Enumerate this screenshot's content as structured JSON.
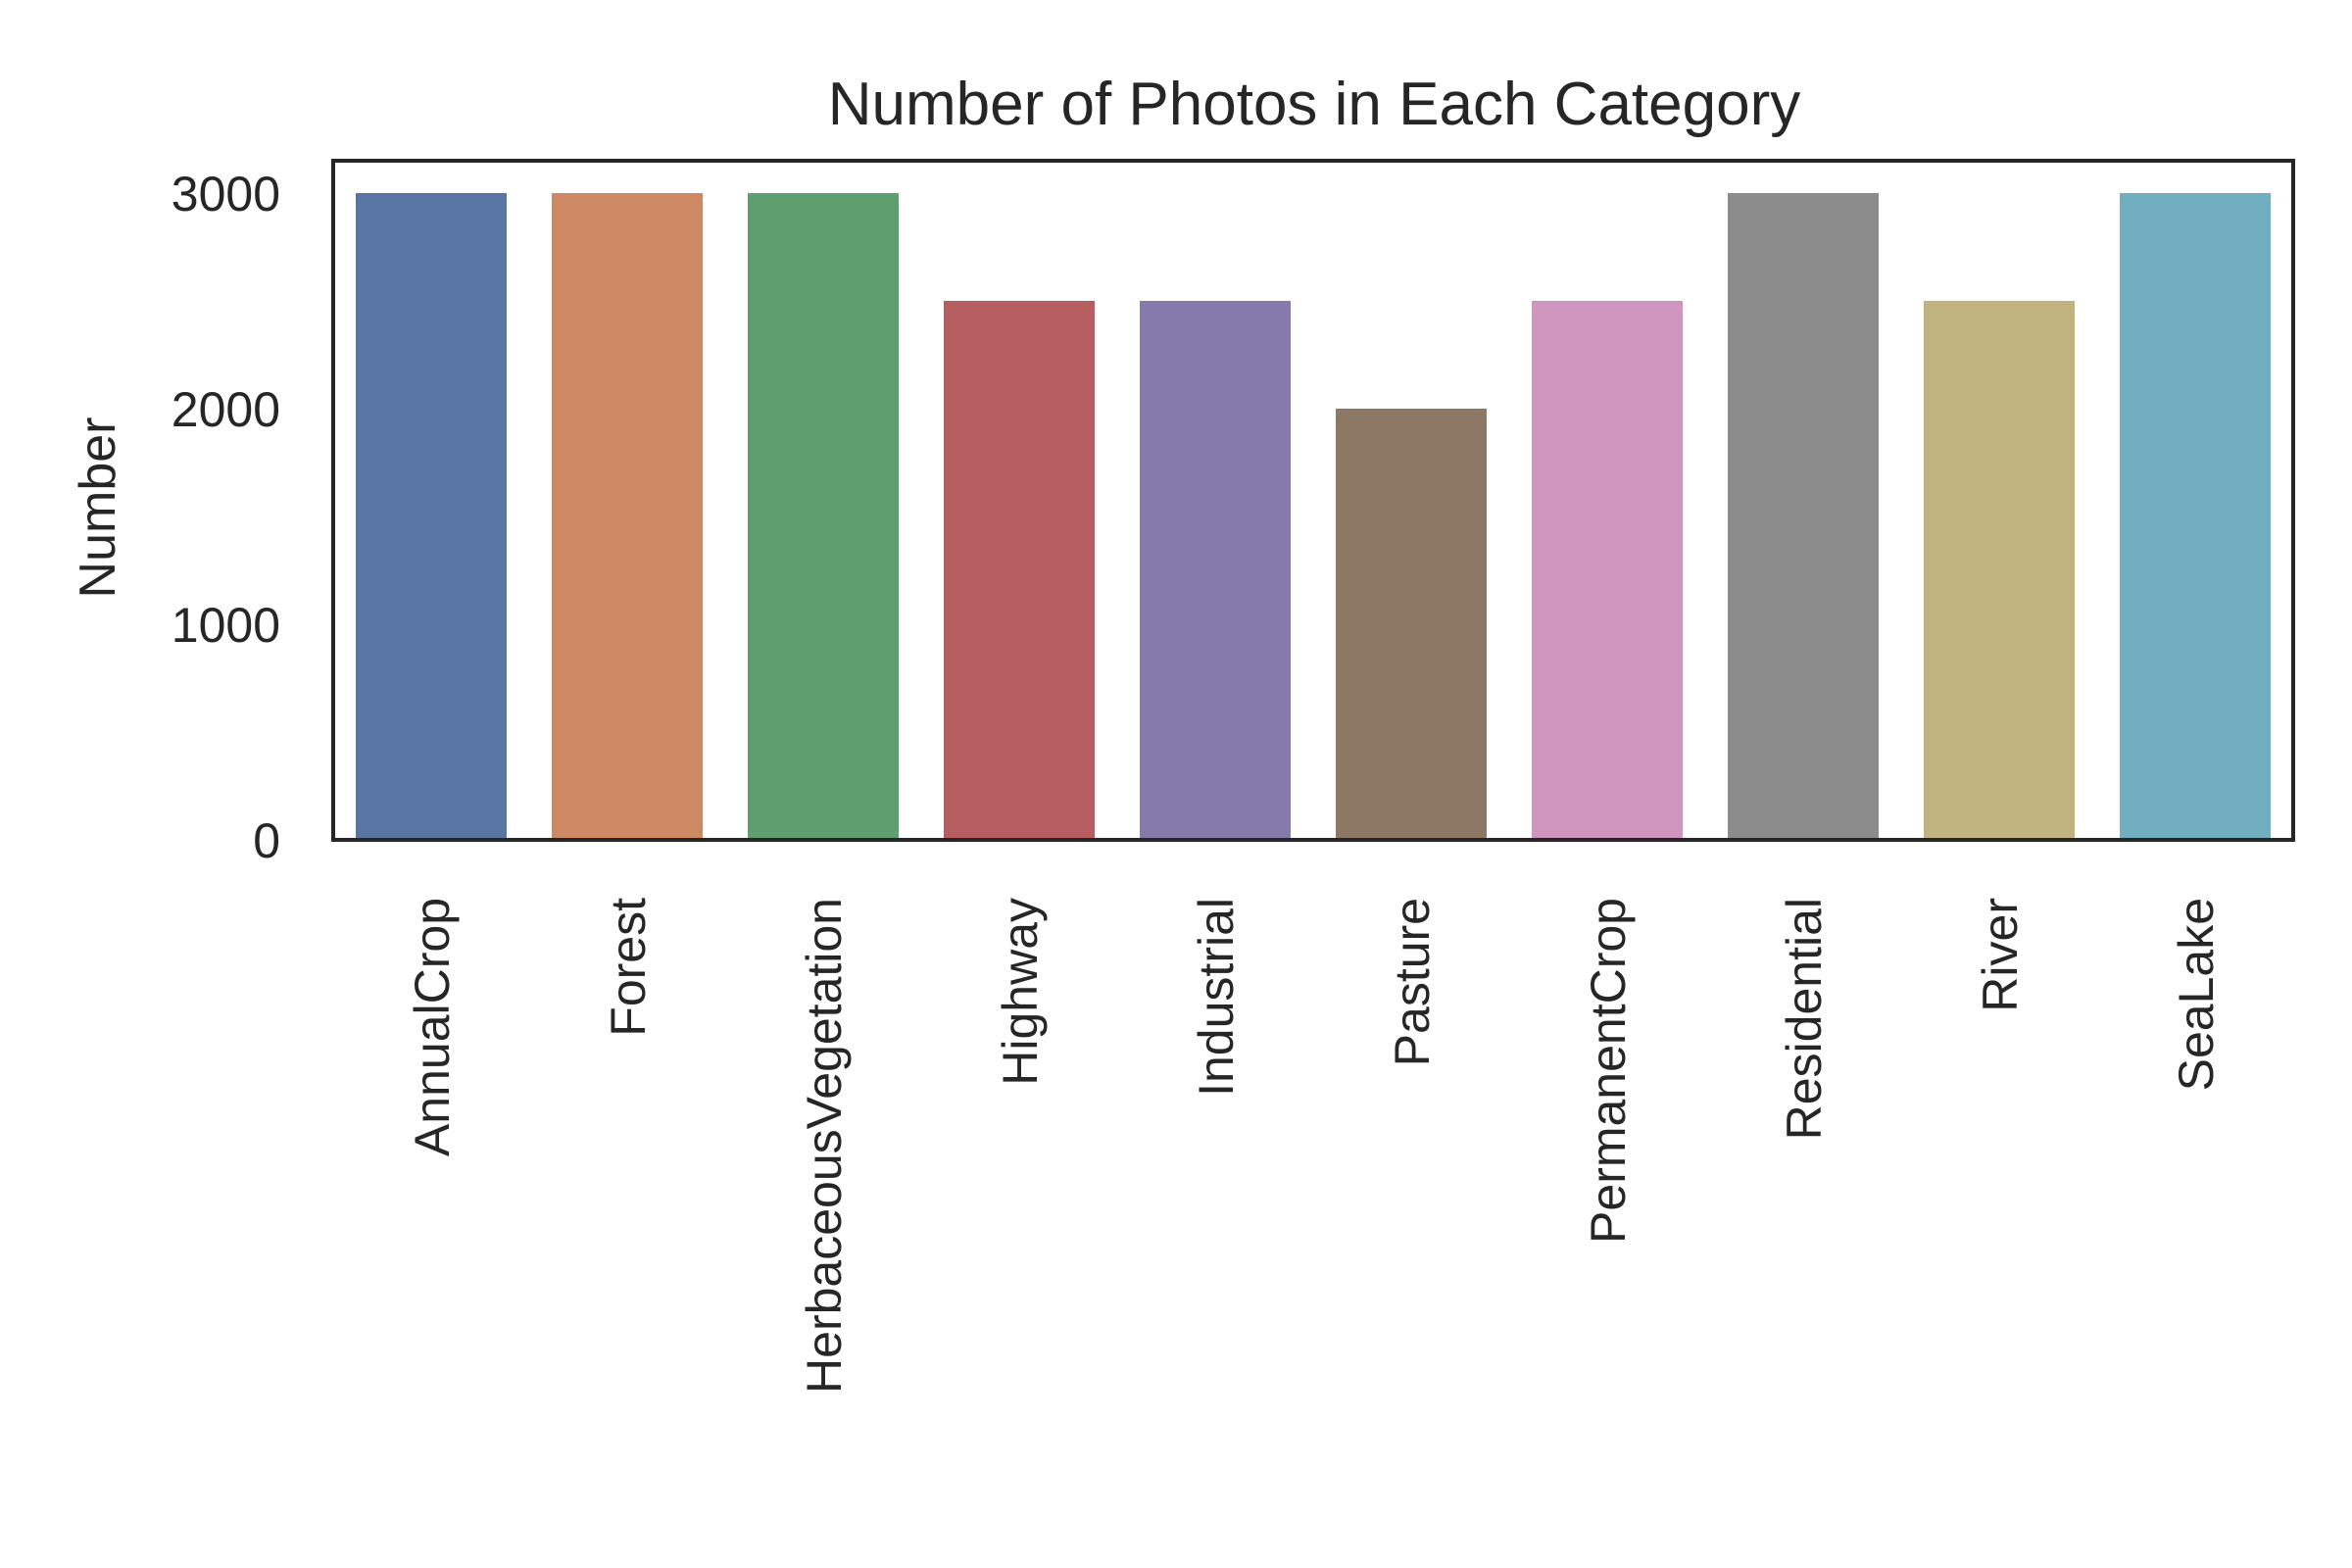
{
  "chart_data": {
    "type": "bar",
    "title": "Number of Photos in Each Category",
    "xlabel": "",
    "ylabel": "Number",
    "categories": [
      "AnnualCrop",
      "Forest",
      "HerbaceousVegetation",
      "Highway",
      "Industrial",
      "Pasture",
      "PermanentCrop",
      "Residential",
      "River",
      "SeaLake"
    ],
    "values": [
      3000,
      3000,
      3000,
      2500,
      2500,
      2000,
      2500,
      3000,
      2500,
      3000
    ],
    "colors": [
      "#5975a4",
      "#cc8963",
      "#5f9e6e",
      "#b55d60",
      "#857aab",
      "#8d7866",
      "#d095bf",
      "#8c8c8c",
      "#c1b37f",
      "#71aec0"
    ],
    "ylim": [
      0,
      3150
    ],
    "yticks": [
      0,
      1000,
      2000,
      3000
    ],
    "grid": false,
    "legend": "none"
  }
}
